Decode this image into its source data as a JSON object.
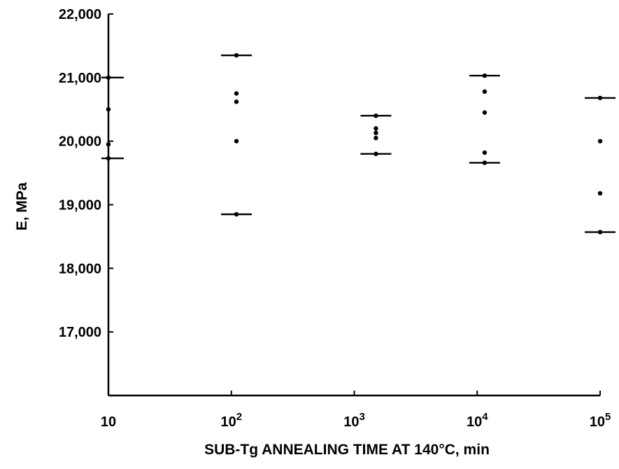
{
  "chart_data": {
    "type": "scatter",
    "title": "",
    "xlabel": "SUB-Tg ANNEALING TIME AT 140°C, min",
    "ylabel": "E, MPa",
    "xscale": "log",
    "xlim": [
      10,
      100000
    ],
    "ylim": [
      16000,
      22000
    ],
    "grid": false,
    "legend": "none",
    "x_ticks": [
      {
        "value": 10,
        "base": "10",
        "exp": ""
      },
      {
        "value": 100,
        "base": "10",
        "exp": "2"
      },
      {
        "value": 1000,
        "base": "10",
        "exp": "3"
      },
      {
        "value": 10000,
        "base": "10",
        "exp": "4"
      },
      {
        "value": 100000,
        "base": "10",
        "exp": "5"
      }
    ],
    "y_ticks": [
      {
        "value": 17000,
        "label": "17,000"
      },
      {
        "value": 18000,
        "label": "18,000"
      },
      {
        "value": 19000,
        "label": "19,000"
      },
      {
        "value": 20000,
        "label": "20,000"
      },
      {
        "value": 21000,
        "label": "21,000"
      },
      {
        "value": 22000,
        "label": "22,000"
      }
    ],
    "groups": [
      {
        "x": 10,
        "max": 21000,
        "min": 19730,
        "points": [
          21000,
          20500,
          19950,
          19730
        ]
      },
      {
        "x": 110,
        "max": 21350,
        "min": 18850,
        "points": [
          21350,
          20750,
          20620,
          20000,
          18850
        ]
      },
      {
        "x": 1500,
        "max": 20400,
        "min": 19800,
        "points": [
          20400,
          20200,
          20130,
          20050,
          19800
        ]
      },
      {
        "x": 11500,
        "max": 21030,
        "min": 19660,
        "points": [
          21030,
          20780,
          20450,
          19820,
          19660
        ]
      },
      {
        "x": 100000,
        "max": 20680,
        "min": 18570,
        "points": [
          20680,
          20000,
          19180,
          18570
        ]
      }
    ]
  }
}
